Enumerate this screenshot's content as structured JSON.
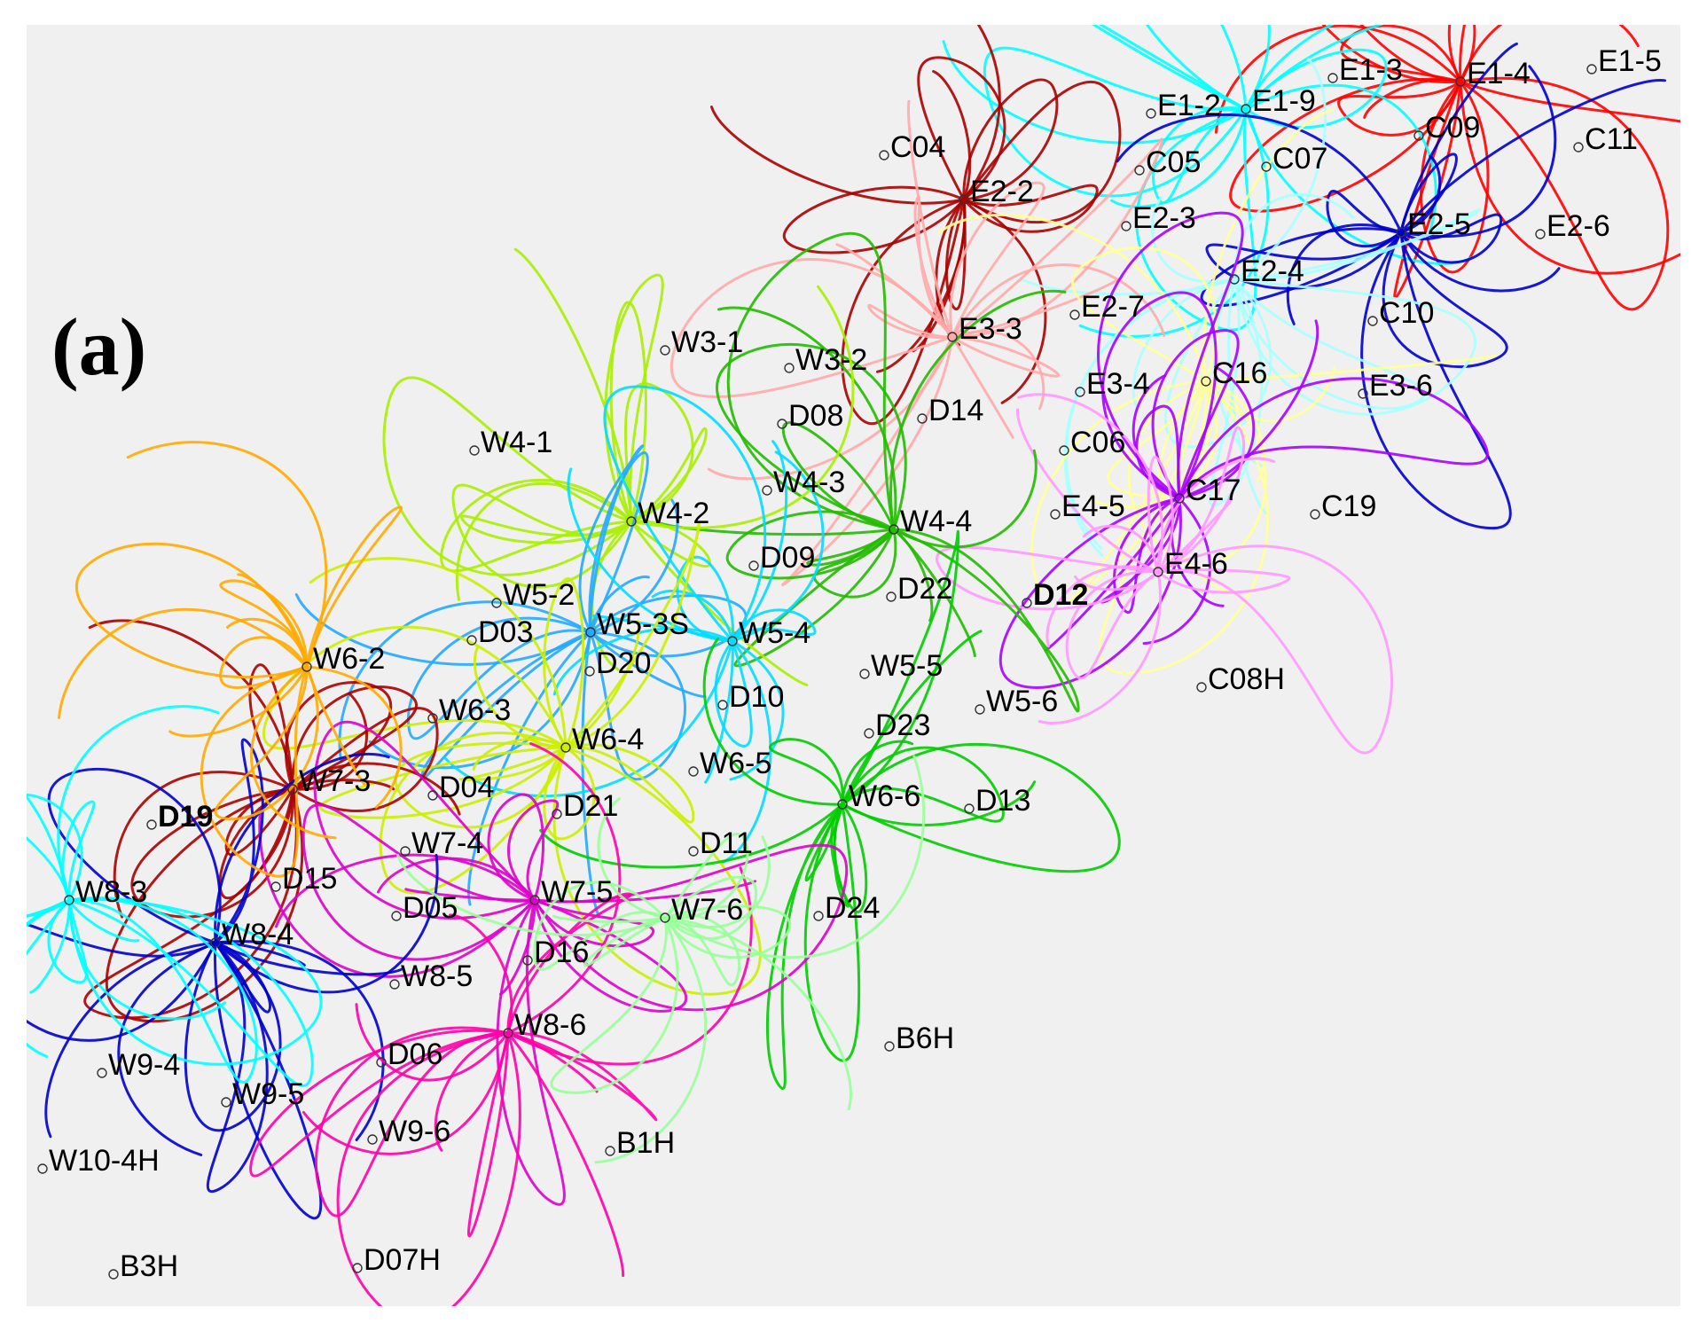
{
  "panel_label": "(a)",
  "colors": {
    "background": "#f0f0f0",
    "label": "#000000"
  },
  "stations": [
    {
      "id": "E1-5",
      "bold": false
    },
    {
      "id": "E1-3",
      "bold": false
    },
    {
      "id": "E1-4",
      "bold": false
    },
    {
      "id": "E1-2",
      "bold": false
    },
    {
      "id": "E1-9",
      "bold": false
    },
    {
      "id": "C09",
      "bold": false
    },
    {
      "id": "C11",
      "bold": false
    },
    {
      "id": "C04",
      "bold": false
    },
    {
      "id": "C05",
      "bold": false
    },
    {
      "id": "C07",
      "bold": false
    },
    {
      "id": "E2-2",
      "bold": false
    },
    {
      "id": "E2-3",
      "bold": false
    },
    {
      "id": "E2-5",
      "bold": false
    },
    {
      "id": "E2-6",
      "bold": false
    },
    {
      "id": "E2-4",
      "bold": false
    },
    {
      "id": "E2-7",
      "bold": false
    },
    {
      "id": "C10",
      "bold": false
    },
    {
      "id": "W3-1",
      "bold": false
    },
    {
      "id": "E3-3",
      "bold": false
    },
    {
      "id": "C16",
      "bold": false
    },
    {
      "id": "W3-2",
      "bold": false
    },
    {
      "id": "E3-4",
      "bold": false
    },
    {
      "id": "E3-6",
      "bold": false
    },
    {
      "id": "D08",
      "bold": false
    },
    {
      "id": "D14",
      "bold": false
    },
    {
      "id": "W4-1",
      "bold": false
    },
    {
      "id": "C06",
      "bold": false
    },
    {
      "id": "W4-3",
      "bold": false
    },
    {
      "id": "C17",
      "bold": false
    },
    {
      "id": "E4-5",
      "bold": false
    },
    {
      "id": "C19",
      "bold": false
    },
    {
      "id": "W4-2",
      "bold": false
    },
    {
      "id": "W4-4",
      "bold": false
    },
    {
      "id": "D09",
      "bold": false
    },
    {
      "id": "E4-6",
      "bold": false
    },
    {
      "id": "W5-2",
      "bold": false
    },
    {
      "id": "D22",
      "bold": false
    },
    {
      "id": "D12",
      "bold": true
    },
    {
      "id": "W5-3S",
      "bold": false
    },
    {
      "id": "D03",
      "bold": false
    },
    {
      "id": "W5-4",
      "bold": false
    },
    {
      "id": "W6-2",
      "bold": false
    },
    {
      "id": "D20",
      "bold": false
    },
    {
      "id": "W5-5",
      "bold": false
    },
    {
      "id": "C08H",
      "bold": false
    },
    {
      "id": "W5-6",
      "bold": false
    },
    {
      "id": "D10",
      "bold": false
    },
    {
      "id": "W6-3",
      "bold": false
    },
    {
      "id": "D23",
      "bold": false
    },
    {
      "id": "W6-4",
      "bold": false
    },
    {
      "id": "W6-5",
      "bold": false
    },
    {
      "id": "W7-3",
      "bold": false
    },
    {
      "id": "D04",
      "bold": false
    },
    {
      "id": "W6-6",
      "bold": false
    },
    {
      "id": "D13",
      "bold": false
    },
    {
      "id": "D21",
      "bold": false
    },
    {
      "id": "D19",
      "bold": true
    },
    {
      "id": "D11",
      "bold": false
    },
    {
      "id": "W7-4",
      "bold": false
    },
    {
      "id": "D15",
      "bold": false
    },
    {
      "id": "W8-3",
      "bold": false
    },
    {
      "id": "W7-5",
      "bold": false
    },
    {
      "id": "D05",
      "bold": false
    },
    {
      "id": "W7-6",
      "bold": false
    },
    {
      "id": "D24",
      "bold": false
    },
    {
      "id": "W8-4",
      "bold": false
    },
    {
      "id": "D16",
      "bold": false
    },
    {
      "id": "W8-5",
      "bold": false
    },
    {
      "id": "W8-6",
      "bold": false
    },
    {
      "id": "B6H",
      "bold": false
    },
    {
      "id": "W9-4",
      "bold": false
    },
    {
      "id": "D06",
      "bold": false
    },
    {
      "id": "W9-5",
      "bold": false
    },
    {
      "id": "W9-6",
      "bold": false
    },
    {
      "id": "B1H",
      "bold": false
    },
    {
      "id": "W10-4H",
      "bold": false
    },
    {
      "id": "B3H",
      "bold": false
    },
    {
      "id": "D07H",
      "bold": false
    }
  ],
  "track_clusters": [
    {
      "hub": "E1-4",
      "color": "#ff0000"
    },
    {
      "hub": "E1-9",
      "color": "#00ffff"
    },
    {
      "hub": "E2-2",
      "color": "#aa0000"
    },
    {
      "hub": "E2-5",
      "color": "#0000cc"
    },
    {
      "hub": "E2-4",
      "color": "#aaffff"
    },
    {
      "hub": "E3-3",
      "color": "#ffaaaa"
    },
    {
      "hub": "C16",
      "color": "#ffff99"
    },
    {
      "hub": "C17",
      "color": "#aa00ff"
    },
    {
      "hub": "E4-6",
      "color": "#ff99ff"
    },
    {
      "hub": "W4-4",
      "color": "#22bb00"
    },
    {
      "hub": "W4-2",
      "color": "#aaee00"
    },
    {
      "hub": "W5-3S",
      "color": "#22aaff"
    },
    {
      "hub": "W5-4",
      "color": "#00ddff"
    },
    {
      "hub": "W6-4",
      "color": "#ccee00"
    },
    {
      "hub": "W6-6",
      "color": "#00cc00"
    },
    {
      "hub": "W7-3",
      "color": "#aa0000"
    },
    {
      "hub": "W7-5",
      "color": "#dd00cc"
    },
    {
      "hub": "W8-4",
      "color": "#0000cc"
    },
    {
      "hub": "W8-6",
      "color": "#ff00aa"
    },
    {
      "hub": "W7-6",
      "color": "#99ff99"
    },
    {
      "hub": "W6-2",
      "color": "#ffaa00"
    },
    {
      "hub": "W8-3",
      "color": "#00ffff"
    }
  ]
}
